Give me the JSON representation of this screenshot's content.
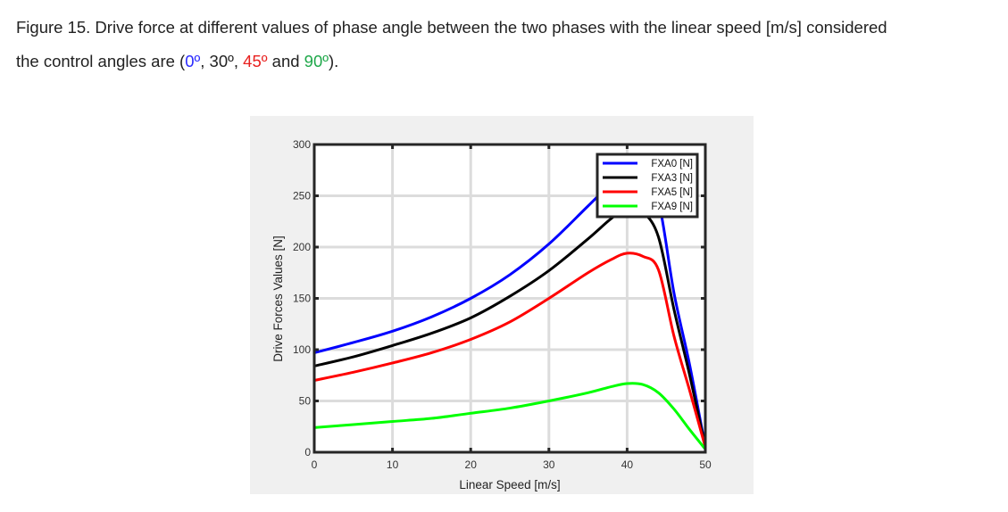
{
  "caption": {
    "label": "Figure 15.",
    "text": " Drive force at different values of phase angle between the two phases with the linear speed [m/s] considered",
    "line2_prefix": "the control angles are  (",
    "angle0": "0º",
    "sep1": ",  ",
    "angle30": "30º",
    "sep2": ", ",
    "angle45": "45º",
    "and": " and ",
    "angle90": "90º",
    "suffix": ")."
  },
  "colors": {
    "blue": "#0000ff",
    "black": "#000000",
    "red": "#ff0000",
    "green": "#00ff00"
  },
  "chart_data": {
    "type": "line",
    "title": "",
    "xlabel": "Linear Speed [m/s]",
    "ylabel": "Drive Forces Values [N]",
    "xlim": [
      0,
      50
    ],
    "ylim": [
      0,
      300
    ],
    "xticks": [
      "0",
      "10",
      "20",
      "30",
      "40",
      "50"
    ],
    "yticks": [
      "0",
      "50",
      "100",
      "150",
      "200",
      "250",
      "300"
    ],
    "grid": true,
    "legend_position": "top-right",
    "x": [
      0,
      5,
      10,
      15,
      20,
      25,
      30,
      35,
      38,
      40,
      42,
      44,
      46,
      48,
      50
    ],
    "series": [
      {
        "name": "FXA0 [N]",
        "color": "#0000ff",
        "values": [
          97,
          107,
          118,
          132,
          150,
          173,
          203,
          240,
          262,
          270,
          266,
          245,
          155,
          85,
          5
        ]
      },
      {
        "name": "FXA3 [N]",
        "color": "#000000",
        "values": [
          84,
          93,
          104,
          116,
          131,
          152,
          177,
          208,
          228,
          237,
          234,
          210,
          139,
          75,
          5
        ]
      },
      {
        "name": "FXA5 [N]",
        "color": "#ff0000",
        "values": [
          70,
          78,
          87,
          97,
          110,
          127,
          150,
          175,
          188,
          194,
          191,
          178,
          113,
          60,
          5
        ]
      },
      {
        "name": "FXA9 [N]",
        "color": "#00ff00",
        "values": [
          24,
          27,
          30,
          33,
          38,
          43,
          50,
          58,
          64,
          67,
          66,
          58,
          42,
          22,
          3
        ]
      }
    ]
  }
}
